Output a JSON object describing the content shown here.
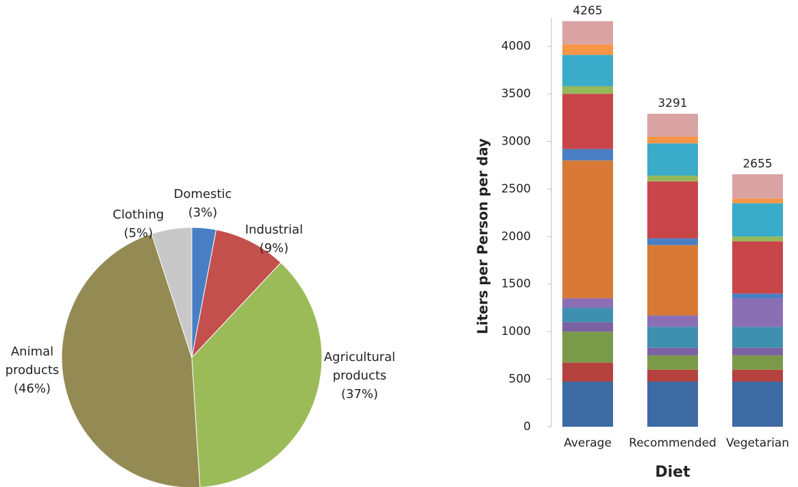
{
  "chart_data": [
    {
      "type": "pie",
      "categories": [
        "Domestic",
        "Industrial",
        "Agricultural products",
        "Animal products",
        "Clothing"
      ],
      "values": [
        3,
        9,
        37,
        46,
        5
      ],
      "value_labels": [
        "(3%)",
        "(9%)",
        "(37%)",
        "(46%)",
        "(5%)"
      ],
      "colors": [
        "#4a7ec4",
        "#c4504e",
        "#9bbb59",
        "#948a54",
        "#c8c8c8"
      ]
    },
    {
      "type": "bar",
      "stacked": true,
      "categories": [
        "Average",
        "Recommended",
        "Vegetarian"
      ],
      "series": [
        {
          "color": "#3e6aa3",
          "values": [
            475,
            475,
            475
          ]
        },
        {
          "color": "#b5413f",
          "values": [
            200,
            125,
            125
          ]
        },
        {
          "color": "#7a9a4a",
          "values": [
            325,
            150,
            150
          ]
        },
        {
          "color": "#7b62a3",
          "values": [
            100,
            80,
            80
          ]
        },
        {
          "color": "#3f8fb0",
          "values": [
            150,
            220,
            220
          ]
        },
        {
          "color": "#8b6fb5",
          "values": [
            100,
            120,
            300
          ]
        },
        {
          "color": "#d87a36",
          "values": [
            1450,
            740,
            0
          ]
        },
        {
          "color": "#4a7fc4",
          "values": [
            120,
            70,
            50
          ]
        },
        {
          "color": "#c8454a",
          "values": [
            580,
            600,
            550
          ]
        },
        {
          "color": "#97b85a",
          "values": [
            80,
            60,
            50
          ]
        },
        {
          "color": "#3aabc9",
          "values": [
            330,
            340,
            350
          ]
        },
        {
          "color": "#f79646",
          "values": [
            110,
            70,
            50
          ]
        },
        {
          "color": "#d9a3a3",
          "values": [
            245,
            241,
            255
          ]
        }
      ],
      "totals": [
        4265,
        3291,
        2655
      ],
      "ylim": [
        0,
        4300
      ],
      "yticks": [
        0,
        500,
        1000,
        1500,
        2000,
        2500,
        3000,
        3500,
        4000
      ],
      "ylabel": "Liters per Person per day",
      "xlabel": "Diet"
    }
  ]
}
